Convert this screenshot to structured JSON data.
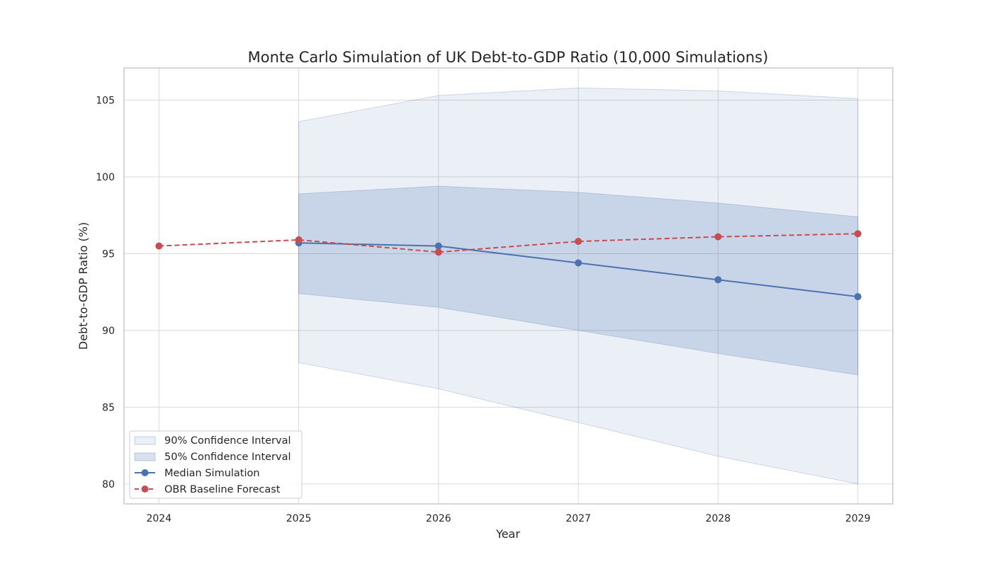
{
  "chart_data": {
    "type": "line",
    "title": "Monte Carlo Simulation of UK Debt-to-GDP Ratio (10,000 Simulations)",
    "xlabel": "Year",
    "ylabel": "Debt-to-GDP Ratio (%)",
    "x_ticks": [
      "2024",
      "2025",
      "2026",
      "2027",
      "2028",
      "2029"
    ],
    "y_ticks": [
      "80",
      "85",
      "90",
      "95",
      "100",
      "105"
    ],
    "xlim": [
      2023.75,
      2029.25
    ],
    "ylim": [
      78.7,
      107.1
    ],
    "grid": true,
    "legend_position": "lower-left",
    "bands": [
      {
        "name": "90% Confidence Interval",
        "x": [
          2025,
          2026,
          2027,
          2028,
          2029
        ],
        "lower": [
          87.9,
          86.2,
          84.0,
          81.8,
          80.0
        ],
        "upper": [
          103.6,
          105.3,
          105.8,
          105.6,
          105.1
        ],
        "color": "#4c72b0",
        "opacity": 0.11
      },
      {
        "name": "50% Confidence Interval",
        "x": [
          2025,
          2026,
          2027,
          2028,
          2029
        ],
        "lower": [
          92.4,
          91.5,
          90.0,
          88.5,
          87.1
        ],
        "upper": [
          98.9,
          99.4,
          99.0,
          98.3,
          97.4
        ],
        "color": "#4c72b0",
        "opacity": 0.22
      }
    ],
    "series": [
      {
        "name": "Median Simulation",
        "x": [
          2025,
          2026,
          2027,
          2028,
          2029
        ],
        "values": [
          95.7,
          95.5,
          94.4,
          93.3,
          92.2
        ],
        "color": "#4c72b0",
        "dashed": false
      },
      {
        "name": "OBR Baseline Forecast",
        "x": [
          2024,
          2025,
          2026,
          2027,
          2028,
          2029
        ],
        "values": [
          95.5,
          95.9,
          95.1,
          95.8,
          96.1,
          96.3
        ],
        "color": "#c44e52",
        "dashed": true
      }
    ]
  }
}
